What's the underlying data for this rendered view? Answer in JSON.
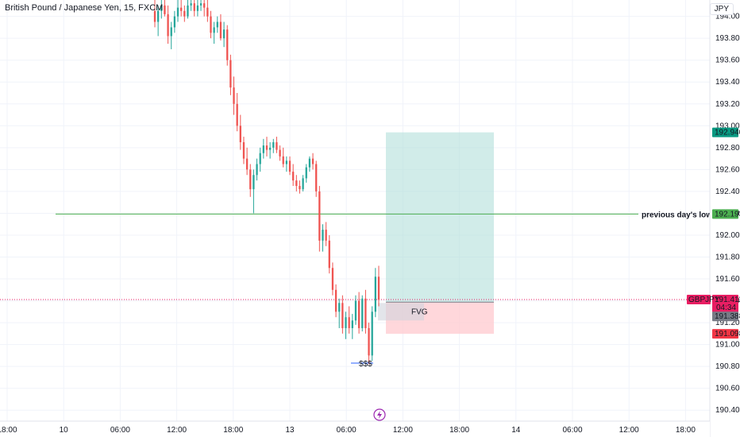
{
  "header": {
    "title": "British Pound / Japanese Yen, 15, FXCM",
    "currency_button": "JPY"
  },
  "chart_data": {
    "type": "candlestick",
    "symbol": "GBPJPY",
    "ylim": [
      190.3,
      194.15
    ],
    "y_ticks": [
      "194.000",
      "193.800",
      "193.600",
      "193.400",
      "193.200",
      "193.000",
      "192.800",
      "192.600",
      "192.400",
      "192.200",
      "192.000",
      "191.800",
      "191.600",
      "191.400",
      "191.200",
      "191.000",
      "190.800",
      "190.600",
      "190.400"
    ],
    "x_ticks": [
      "18:00",
      "10",
      "06:00",
      "12:00",
      "18:00",
      "13",
      "06:00",
      "12:00",
      "18:00",
      "14",
      "06:00",
      "12:00",
      "18:00"
    ],
    "annotations": {
      "level_label": "previous day's low",
      "level_value": 192.193,
      "fvg_label": "FVG",
      "liquidity_label": "$$$",
      "current_price": "191.411",
      "countdown": "04:34",
      "symbol_tag": "GBPJPY",
      "target_price": "192.940",
      "entry_price": "191.388",
      "stop_price": "191.098"
    },
    "position": {
      "entry": 191.388,
      "target": 192.94,
      "stop": 191.098
    },
    "candles": [
      [
        194.05,
        194.15,
        193.9,
        193.95
      ],
      [
        193.95,
        194.1,
        193.82,
        194.05
      ],
      [
        194.05,
        194.15,
        193.98,
        194.1
      ],
      [
        194.1,
        194.15,
        194.0,
        194.02
      ],
      [
        194.02,
        194.1,
        193.75,
        193.82
      ],
      [
        193.82,
        193.95,
        193.7,
        193.9
      ],
      [
        193.9,
        194.05,
        193.85,
        194.0
      ],
      [
        194.0,
        194.15,
        193.95,
        194.08
      ],
      [
        194.08,
        194.15,
        194.0,
        194.05
      ],
      [
        194.05,
        194.1,
        193.95,
        194.0
      ],
      [
        194.0,
        194.15,
        193.98,
        194.1
      ],
      [
        194.1,
        194.15,
        194.05,
        194.12
      ],
      [
        194.12,
        194.15,
        194.0,
        194.05
      ],
      [
        194.05,
        194.15,
        194.0,
        194.1
      ],
      [
        194.1,
        194.15,
        194.05,
        194.12
      ],
      [
        194.12,
        194.15,
        194.0,
        194.08
      ],
      [
        194.08,
        194.15,
        193.95,
        194.0
      ],
      [
        194.0,
        194.05,
        193.8,
        193.85
      ],
      [
        193.85,
        193.95,
        193.75,
        193.9
      ],
      [
        193.9,
        194.0,
        193.85,
        193.95
      ],
      [
        193.95,
        194.02,
        193.78,
        193.8
      ],
      [
        193.8,
        193.95,
        193.72,
        193.88
      ],
      [
        193.88,
        193.92,
        193.55,
        193.6
      ],
      [
        193.6,
        193.65,
        193.28,
        193.35
      ],
      [
        193.35,
        193.45,
        193.1,
        193.2
      ],
      [
        193.2,
        193.3,
        192.95,
        193.0
      ],
      [
        193.0,
        193.1,
        192.78,
        192.85
      ],
      [
        192.85,
        192.9,
        192.65,
        192.7
      ],
      [
        192.7,
        192.8,
        192.55,
        192.6
      ],
      [
        192.6,
        192.65,
        192.35,
        192.42
      ],
      [
        192.42,
        192.6,
        192.2,
        192.55
      ],
      [
        192.55,
        192.7,
        192.5,
        192.65
      ],
      [
        192.65,
        192.8,
        192.58,
        192.75
      ],
      [
        192.75,
        192.88,
        192.7,
        192.82
      ],
      [
        192.82,
        192.9,
        192.72,
        192.78
      ],
      [
        192.78,
        192.85,
        192.7,
        192.8
      ],
      [
        192.8,
        192.88,
        192.75,
        192.85
      ],
      [
        192.85,
        192.9,
        192.75,
        192.78
      ],
      [
        192.78,
        192.82,
        192.68,
        192.72
      ],
      [
        192.72,
        192.8,
        192.62,
        192.65
      ],
      [
        192.65,
        192.72,
        192.58,
        192.68
      ],
      [
        192.68,
        192.72,
        192.55,
        192.58
      ],
      [
        192.58,
        192.65,
        192.45,
        192.5
      ],
      [
        192.5,
        192.55,
        192.4,
        192.45
      ],
      [
        192.45,
        192.5,
        192.38,
        192.42
      ],
      [
        192.42,
        192.55,
        192.4,
        192.52
      ],
      [
        192.52,
        192.65,
        192.48,
        192.62
      ],
      [
        192.62,
        192.72,
        192.58,
        192.7
      ],
      [
        192.7,
        192.75,
        192.6,
        192.65
      ],
      [
        192.65,
        192.68,
        192.35,
        192.4
      ],
      [
        192.4,
        192.45,
        191.85,
        191.95
      ],
      [
        191.95,
        192.1,
        191.85,
        192.05
      ],
      [
        192.05,
        192.12,
        191.9,
        191.95
      ],
      [
        191.95,
        192.0,
        191.65,
        191.7
      ],
      [
        191.7,
        191.75,
        191.45,
        191.5
      ],
      [
        191.5,
        191.55,
        191.25,
        191.3
      ],
      [
        191.3,
        191.42,
        191.15,
        191.38
      ],
      [
        191.38,
        191.45,
        191.1,
        191.15
      ],
      [
        191.15,
        191.3,
        191.05,
        191.25
      ],
      [
        191.25,
        191.35,
        191.1,
        191.15
      ],
      [
        191.15,
        191.28,
        191.05,
        191.22
      ],
      [
        191.22,
        191.45,
        191.18,
        191.4
      ],
      [
        191.4,
        191.48,
        191.1,
        191.15
      ],
      [
        191.15,
        191.45,
        191.12,
        191.42
      ],
      [
        191.42,
        191.5,
        191.1,
        191.15
      ],
      [
        191.15,
        191.2,
        190.82,
        190.9
      ],
      [
        190.9,
        191.35,
        190.85,
        191.3
      ],
      [
        191.3,
        191.7,
        191.25,
        191.62
      ],
      [
        191.62,
        191.72,
        191.35,
        191.41
      ]
    ]
  },
  "colors": {
    "up": "#26a69a",
    "down": "#ef5350",
    "grid": "#f0f3fa",
    "level": "#4caf50",
    "target_zone": "#b2dfdb",
    "stop_zone": "#ffcdd2",
    "current_price": "#e91e63",
    "target_tag": "#089981",
    "stop_tag": "#f23645"
  },
  "icons": {
    "replay": "lightning-icon"
  }
}
